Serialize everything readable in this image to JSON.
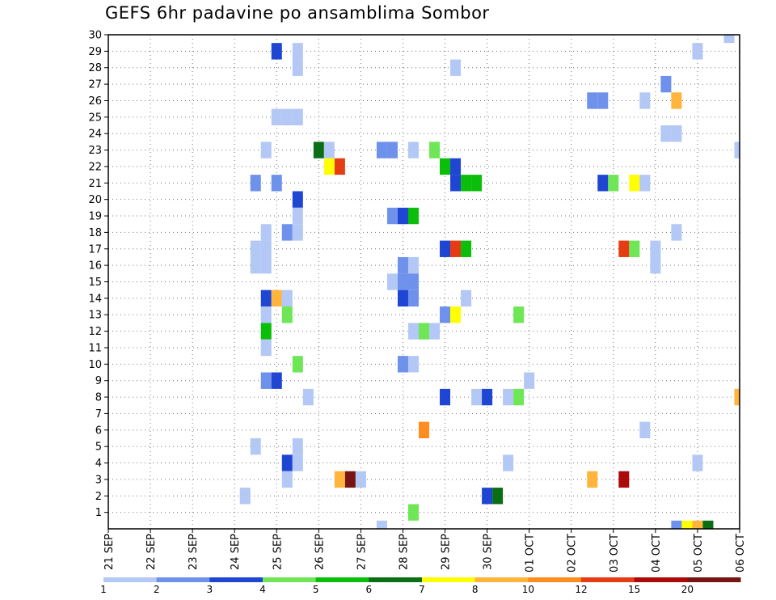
{
  "chart_data": {
    "type": "heatmap",
    "title": "GEFS 6hr padavine po ansamblima Sombor",
    "xlabel": "",
    "ylabel": "",
    "x_ticks": [
      "21 SEP",
      "22 SEP",
      "23 SEP",
      "24 SEP",
      "25 SEP",
      "26 SEP",
      "27 SEP",
      "28 SEP",
      "29 SEP",
      "30 SEP",
      "01 OCT",
      "02 OCT",
      "03 OCT",
      "04 OCT",
      "05 OCT",
      "06 OCT"
    ],
    "y_ticks": [
      1,
      2,
      3,
      4,
      5,
      6,
      7,
      8,
      9,
      10,
      11,
      12,
      13,
      14,
      15,
      16,
      17,
      18,
      19,
      20,
      21,
      22,
      23,
      24,
      25,
      26,
      27,
      28,
      29,
      30
    ],
    "xlim_days_from_first_tick": [
      0,
      15
    ],
    "ylim": [
      0,
      30
    ],
    "grid": true,
    "colorbar": {
      "labels": [
        "1",
        "2",
        "3",
        "4",
        "5",
        "6",
        "7",
        "8",
        "10",
        "12",
        "15",
        "20"
      ],
      "colors": [
        "#b4c8f5",
        "#6e91eb",
        "#1e46d2",
        "#6ee656",
        "#0abe0a",
        "#0a6e14",
        "#ffff00",
        "#ffb43c",
        "#ff8c1e",
        "#e63c14",
        "#aa0a0a",
        "#781414"
      ]
    },
    "points": [
      {
        "m": 30,
        "t": "05 OCT 18Z",
        "v": 1
      },
      {
        "m": 29,
        "t": "25 SEP 00Z",
        "v": 3
      },
      {
        "m": 29,
        "t": "25 SEP 12Z",
        "v": 1
      },
      {
        "m": 29,
        "t": "05 OCT 00Z",
        "v": 1
      },
      {
        "m": 28,
        "t": "25 SEP 12Z",
        "v": 1
      },
      {
        "m": 28,
        "t": "29 SEP 06Z",
        "v": 1
      },
      {
        "m": 27,
        "t": "04 OCT 06Z",
        "v": 2
      },
      {
        "m": 26,
        "t": "02 OCT 12Z",
        "v": 2
      },
      {
        "m": 26,
        "t": "02 OCT 18Z",
        "v": 2
      },
      {
        "m": 26,
        "t": "03 OCT 18Z",
        "v": 1
      },
      {
        "m": 26,
        "t": "04 OCT 12Z",
        "v": 8
      },
      {
        "m": 25,
        "t": "25 SEP 00Z",
        "v": 1
      },
      {
        "m": 25,
        "t": "25 SEP 06Z",
        "v": 1
      },
      {
        "m": 25,
        "t": "25 SEP 12Z",
        "v": 1
      },
      {
        "m": 24,
        "t": "04 OCT 06Z",
        "v": 1
      },
      {
        "m": 24,
        "t": "04 OCT 12Z",
        "v": 1
      },
      {
        "m": 23,
        "t": "24 SEP 18Z",
        "v": 1
      },
      {
        "m": 23,
        "t": "26 SEP 00Z",
        "v": 6
      },
      {
        "m": 23,
        "t": "26 SEP 06Z",
        "v": 1
      },
      {
        "m": 23,
        "t": "27 SEP 12Z",
        "v": 2
      },
      {
        "m": 23,
        "t": "27 SEP 18Z",
        "v": 2
      },
      {
        "m": 23,
        "t": "28 SEP 06Z",
        "v": 1
      },
      {
        "m": 23,
        "t": "28 SEP 18Z",
        "v": 4
      },
      {
        "m": 23,
        "t": "06 OCT 00Z",
        "v": 1
      },
      {
        "m": 22,
        "t": "26 SEP 06Z",
        "v": 7
      },
      {
        "m": 22,
        "t": "26 SEP 12Z",
        "v": 12
      },
      {
        "m": 22,
        "t": "29 SEP 00Z",
        "v": 5
      },
      {
        "m": 22,
        "t": "29 SEP 06Z",
        "v": 3
      },
      {
        "m": 21,
        "t": "24 SEP 12Z",
        "v": 2
      },
      {
        "m": 21,
        "t": "25 SEP 00Z",
        "v": 2
      },
      {
        "m": 21,
        "t": "29 SEP 06Z",
        "v": 3
      },
      {
        "m": 21,
        "t": "29 SEP 12Z",
        "v": 5
      },
      {
        "m": 21,
        "t": "29 SEP 18Z",
        "v": 5
      },
      {
        "m": 21,
        "t": "02 OCT 18Z",
        "v": 3
      },
      {
        "m": 21,
        "t": "03 OCT 00Z",
        "v": 4
      },
      {
        "m": 21,
        "t": "03 OCT 12Z",
        "v": 7
      },
      {
        "m": 21,
        "t": "03 OCT 18Z",
        "v": 1
      },
      {
        "m": 20,
        "t": "25 SEP 12Z",
        "v": 3
      },
      {
        "m": 19,
        "t": "25 SEP 12Z",
        "v": 1
      },
      {
        "m": 19,
        "t": "27 SEP 18Z",
        "v": 2
      },
      {
        "m": 19,
        "t": "28 SEP 00Z",
        "v": 3
      },
      {
        "m": 19,
        "t": "28 SEP 06Z",
        "v": 5
      },
      {
        "m": 18,
        "t": "24 SEP 18Z",
        "v": 1
      },
      {
        "m": 18,
        "t": "25 SEP 06Z",
        "v": 2
      },
      {
        "m": 18,
        "t": "25 SEP 12Z",
        "v": 1
      },
      {
        "m": 18,
        "t": "04 OCT 12Z",
        "v": 1
      },
      {
        "m": 17,
        "t": "24 SEP 12Z",
        "v": 1
      },
      {
        "m": 17,
        "t": "24 SEP 18Z",
        "v": 1
      },
      {
        "m": 17,
        "t": "29 SEP 00Z",
        "v": 3
      },
      {
        "m": 17,
        "t": "29 SEP 06Z",
        "v": 12
      },
      {
        "m": 17,
        "t": "29 SEP 12Z",
        "v": 5
      },
      {
        "m": 17,
        "t": "03 OCT 06Z",
        "v": 12
      },
      {
        "m": 17,
        "t": "03 OCT 12Z",
        "v": 4
      },
      {
        "m": 17,
        "t": "04 OCT 00Z",
        "v": 1
      },
      {
        "m": 16,
        "t": "24 SEP 12Z",
        "v": 1
      },
      {
        "m": 16,
        "t": "24 SEP 18Z",
        "v": 1
      },
      {
        "m": 16,
        "t": "28 SEP 00Z",
        "v": 2
      },
      {
        "m": 16,
        "t": "28 SEP 06Z",
        "v": 1
      },
      {
        "m": 16,
        "t": "04 OCT 00Z",
        "v": 1
      },
      {
        "m": 15,
        "t": "27 SEP 18Z",
        "v": 1
      },
      {
        "m": 15,
        "t": "28 SEP 00Z",
        "v": 2
      },
      {
        "m": 15,
        "t": "28 SEP 06Z",
        "v": 2
      },
      {
        "m": 14,
        "t": "24 SEP 18Z",
        "v": 3
      },
      {
        "m": 14,
        "t": "25 SEP 00Z",
        "v": 8
      },
      {
        "m": 14,
        "t": "25 SEP 06Z",
        "v": 1
      },
      {
        "m": 14,
        "t": "28 SEP 00Z",
        "v": 3
      },
      {
        "m": 14,
        "t": "28 SEP 06Z",
        "v": 2
      },
      {
        "m": 14,
        "t": "29 SEP 12Z",
        "v": 1
      },
      {
        "m": 13,
        "t": "24 SEP 18Z",
        "v": 1
      },
      {
        "m": 13,
        "t": "25 SEP 06Z",
        "v": 4
      },
      {
        "m": 13,
        "t": "29 SEP 00Z",
        "v": 2
      },
      {
        "m": 13,
        "t": "29 SEP 06Z",
        "v": 7
      },
      {
        "m": 13,
        "t": "30 SEP 18Z",
        "v": 4
      },
      {
        "m": 12,
        "t": "24 SEP 18Z",
        "v": 5
      },
      {
        "m": 12,
        "t": "28 SEP 06Z",
        "v": 1
      },
      {
        "m": 12,
        "t": "28 SEP 12Z",
        "v": 4
      },
      {
        "m": 12,
        "t": "28 SEP 18Z",
        "v": 1
      },
      {
        "m": 11,
        "t": "24 SEP 18Z",
        "v": 1
      },
      {
        "m": 10,
        "t": "25 SEP 12Z",
        "v": 4
      },
      {
        "m": 10,
        "t": "28 SEP 00Z",
        "v": 2
      },
      {
        "m": 10,
        "t": "28 SEP 06Z",
        "v": 1
      },
      {
        "m": 9,
        "t": "24 SEP 18Z",
        "v": 2
      },
      {
        "m": 9,
        "t": "25 SEP 00Z",
        "v": 3
      },
      {
        "m": 9,
        "t": "01 OCT 00Z",
        "v": 1
      },
      {
        "m": 8,
        "t": "25 SEP 18Z",
        "v": 1
      },
      {
        "m": 8,
        "t": "29 SEP 00Z",
        "v": 3
      },
      {
        "m": 8,
        "t": "29 SEP 18Z",
        "v": 1
      },
      {
        "m": 8,
        "t": "30 SEP 00Z",
        "v": 3
      },
      {
        "m": 8,
        "t": "30 SEP 12Z",
        "v": 1
      },
      {
        "m": 8,
        "t": "30 SEP 18Z",
        "v": 4
      },
      {
        "m": 8,
        "t": "06 OCT 00Z",
        "v": 8
      },
      {
        "m": 6,
        "t": "28 SEP 12Z",
        "v": 10
      },
      {
        "m": 6,
        "t": "03 OCT 18Z",
        "v": 1
      },
      {
        "m": 5,
        "t": "24 SEP 12Z",
        "v": 1
      },
      {
        "m": 5,
        "t": "25 SEP 12Z",
        "v": 1
      },
      {
        "m": 4,
        "t": "25 SEP 06Z",
        "v": 3
      },
      {
        "m": 4,
        "t": "25 SEP 12Z",
        "v": 1
      },
      {
        "m": 4,
        "t": "30 SEP 12Z",
        "v": 1
      },
      {
        "m": 4,
        "t": "05 OCT 00Z",
        "v": 1
      },
      {
        "m": 3,
        "t": "25 SEP 06Z",
        "v": 1
      },
      {
        "m": 3,
        "t": "26 SEP 12Z",
        "v": 8
      },
      {
        "m": 3,
        "t": "26 SEP 18Z",
        "v": 20
      },
      {
        "m": 3,
        "t": "27 SEP 00Z",
        "v": 1
      },
      {
        "m": 3,
        "t": "02 OCT 12Z",
        "v": 8
      },
      {
        "m": 3,
        "t": "03 OCT 06Z",
        "v": 15
      },
      {
        "m": 2,
        "t": "24 SEP 06Z",
        "v": 1
      },
      {
        "m": 2,
        "t": "30 SEP 00Z",
        "v": 3
      },
      {
        "m": 2,
        "t": "30 SEP 06Z",
        "v": 6
      },
      {
        "m": 1,
        "t": "28 SEP 06Z",
        "v": 4
      },
      {
        "m": 0,
        "t": "27 SEP 12Z",
        "v": 1
      },
      {
        "m": 0,
        "t": "04 OCT 12Z",
        "v": 2
      },
      {
        "m": 0,
        "t": "04 OCT 18Z",
        "v": 7
      },
      {
        "m": 0,
        "t": "05 OCT 00Z",
        "v": 8
      },
      {
        "m": 0,
        "t": "05 OCT 06Z",
        "v": 6
      }
    ]
  }
}
